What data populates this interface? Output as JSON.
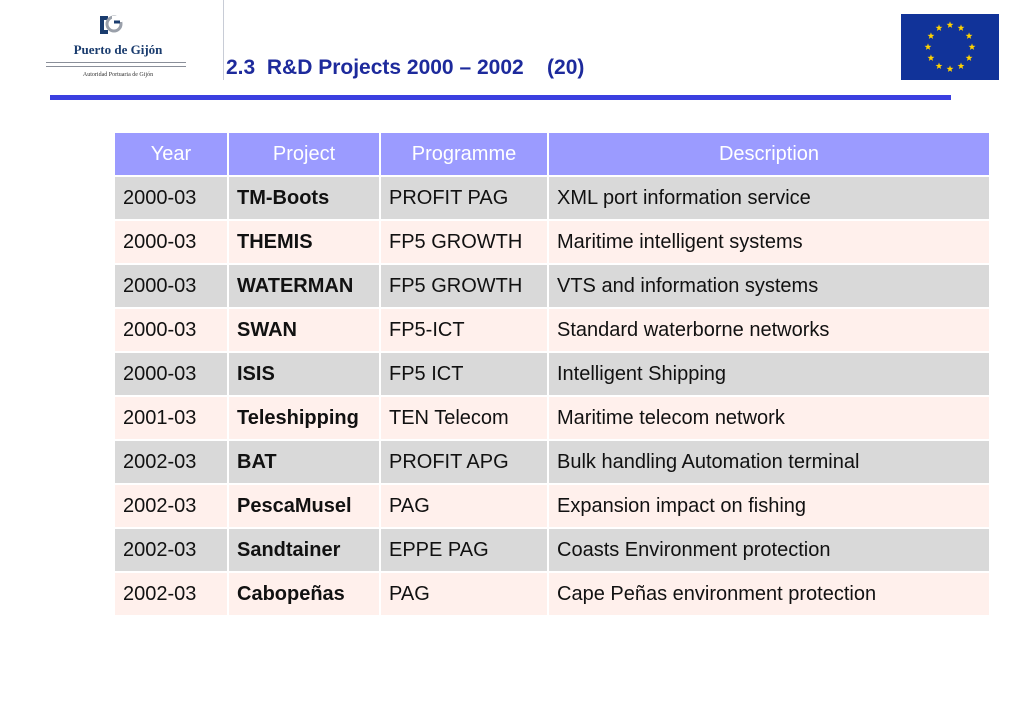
{
  "header": {
    "logo_name": "Puerto de Gijón",
    "logo_subtitle": "Autoridad Portuaria de Gijón",
    "title": "2.3  R&D Projects 2000 – 2002    (20)",
    "flag_icon": "eu-flag-icon",
    "accent_color": "#3b3fe0"
  },
  "table": {
    "columns": [
      "Year",
      "Project",
      "Programme",
      "Description"
    ],
    "rows": [
      {
        "year": "2000-03",
        "project": "TM-Boots",
        "programme": "PROFIT PAG",
        "description": "XML port information service"
      },
      {
        "year": "2000-03",
        "project": "THEMIS",
        "programme": "FP5 GROWTH",
        "description": "Maritime intelligent systems"
      },
      {
        "year": "2000-03",
        "project": "WATERMAN",
        "programme": "FP5 GROWTH",
        "description": "VTS and information systems"
      },
      {
        "year": "2000-03",
        "project": "SWAN",
        "programme": "FP5-ICT",
        "description": "Standard waterborne networks"
      },
      {
        "year": "2000-03",
        "project": "ISIS",
        "programme": "FP5 ICT",
        "description": "Intelligent Shipping"
      },
      {
        "year": "2001-03",
        "project": "Teleshipping",
        "programme": "TEN Telecom",
        "description": "Maritime telecom network"
      },
      {
        "year": "2002-03",
        "project": "BAT",
        "programme": "PROFIT APG",
        "description": "Bulk handling Automation terminal"
      },
      {
        "year": "2002-03",
        "project": "PescaMusel",
        "programme": "PAG",
        "description": "Expansion impact on fishing"
      },
      {
        "year": "2002-03",
        "project": "Sandtainer",
        "programme": "EPPE PAG",
        "description": "Coasts Environment protection"
      },
      {
        "year": "2002-03",
        "project": "Cabopeñas",
        "programme": "PAG",
        "description": "Cape Peñas environment protection"
      }
    ]
  }
}
